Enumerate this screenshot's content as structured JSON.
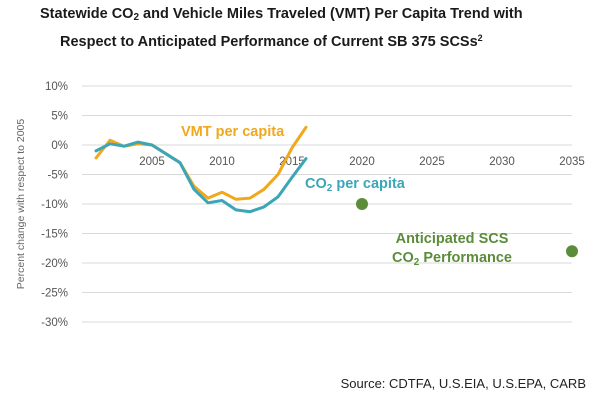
{
  "title": {
    "line1_pre": "Statewide CO",
    "line1_sub": "2",
    "line1_post": " and Vehicle Miles Traveled (VMT) Per Capita Trend with",
    "line2": "Respect to Anticipated Performance of Current SB 375 SCSs",
    "line2_sup": "2"
  },
  "source": "Source: CDTFA, U.S.EIA, U.S.EPA, CARB",
  "chart_data": {
    "type": "line",
    "ylabel": "Percent change with respect to 2005",
    "xlim": [
      2000,
      2035
    ],
    "ylim": [
      -30,
      10
    ],
    "x_ticks": [
      "2005",
      "2010",
      "2015",
      "2020",
      "2025",
      "2030",
      "2035"
    ],
    "y_ticks": [
      "10%",
      "5%",
      "0%",
      "-5%",
      "-10%",
      "-15%",
      "-20%",
      "-25%",
      "-30%"
    ],
    "grid": "horizontal",
    "series": [
      {
        "name": "VMT per capita",
        "color": "#F0A81C",
        "x": [
          2001,
          2002,
          2003,
          2004,
          2005,
          2006,
          2007,
          2008,
          2009,
          2010,
          2011,
          2012,
          2013,
          2014,
          2015,
          2016
        ],
        "y": [
          -2.2,
          0.8,
          -0.2,
          0.2,
          0.0,
          -1.5,
          -3.0,
          -7.0,
          -9.0,
          -8.0,
          -9.2,
          -9.0,
          -7.5,
          -5.0,
          -0.5,
          3.0
        ]
      },
      {
        "name": "CO2 per capita",
        "color": "#3AA6B8",
        "x": [
          2001,
          2002,
          2003,
          2004,
          2005,
          2006,
          2007,
          2008,
          2009,
          2010,
          2011,
          2012,
          2013,
          2014,
          2015,
          2016
        ],
        "y": [
          -1.0,
          0.2,
          -0.2,
          0.5,
          0.0,
          -1.5,
          -3.0,
          -7.5,
          -9.8,
          -9.4,
          -11.0,
          -11.3,
          -10.5,
          -8.8,
          -5.5,
          -2.3
        ]
      }
    ],
    "points": [
      {
        "name": "Anticipated SCS CO2 Performance",
        "color": "#5B8C3A",
        "x": 2020,
        "y": -10
      },
      {
        "name": "Anticipated SCS CO2 Performance",
        "color": "#5B8C3A",
        "x": 2035,
        "y": -18
      }
    ],
    "labels": {
      "vmt": "VMT per capita",
      "co2_pre": "CO",
      "co2_sub": "2",
      "co2_post": " per capita",
      "scs_line1": "Anticipated SCS",
      "scs_line2_pre": "CO",
      "scs_line2_sub": "2",
      "scs_line2_post": " Performance"
    }
  }
}
